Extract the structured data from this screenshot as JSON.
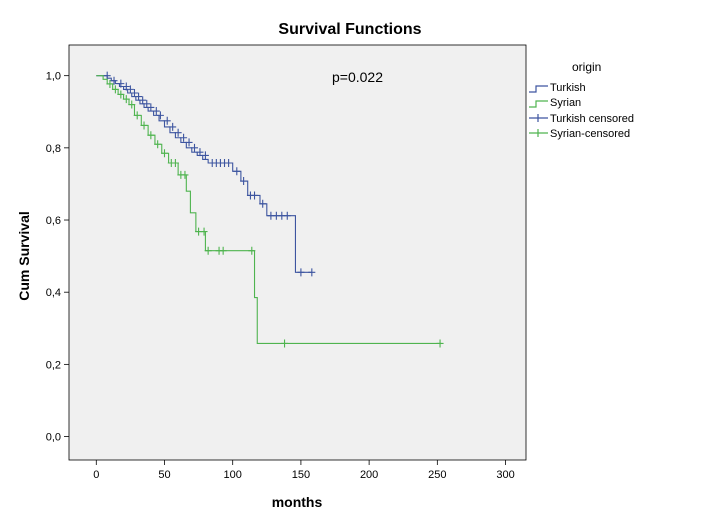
{
  "chart_data": {
    "type": "line",
    "title": "Survival Functions",
    "xlabel": "months",
    "ylabel": "Cum Survival",
    "xlim": [
      -20,
      315
    ],
    "ylim": [
      -0.065,
      1.085
    ],
    "x_ticks": [
      0,
      50,
      100,
      150,
      200,
      250,
      300
    ],
    "x_tick_labels": [
      "0",
      "50",
      "100",
      "150",
      "200",
      "250",
      "300"
    ],
    "y_ticks": [
      0.0,
      0.2,
      0.4,
      0.6,
      0.8,
      1.0
    ],
    "y_tick_labels": [
      "0,0",
      "0,2",
      "0,4",
      "0,6",
      "0,8",
      "1,0"
    ],
    "annotation": "p=0.022",
    "plot_background": "#f0f0f0",
    "grid": false,
    "legend_placement": "right-top",
    "legend": {
      "title": "origin",
      "entries": [
        "Turkish",
        "Syrian",
        "Turkish censored",
        "Syrian-censored"
      ]
    },
    "series": [
      {
        "name": "Turkish",
        "color": "#3d55a0",
        "steps": [
          [
            0,
            1.0
          ],
          [
            8,
            1.0
          ],
          [
            8,
            0.993
          ],
          [
            11,
            0.993
          ],
          [
            11,
            0.986
          ],
          [
            14,
            0.986
          ],
          [
            14,
            0.978
          ],
          [
            17,
            0.978
          ],
          [
            17,
            0.97
          ],
          [
            20,
            0.97
          ],
          [
            20,
            0.962
          ],
          [
            23,
            0.962
          ],
          [
            23,
            0.952
          ],
          [
            26,
            0.952
          ],
          [
            26,
            0.942
          ],
          [
            29,
            0.942
          ],
          [
            29,
            0.932
          ],
          [
            32,
            0.932
          ],
          [
            32,
            0.922
          ],
          [
            35,
            0.922
          ],
          [
            35,
            0.912
          ],
          [
            38,
            0.912
          ],
          [
            38,
            0.902
          ],
          [
            42,
            0.902
          ],
          [
            42,
            0.89
          ],
          [
            46,
            0.89
          ],
          [
            46,
            0.875
          ],
          [
            50,
            0.875
          ],
          [
            50,
            0.858
          ],
          [
            54,
            0.858
          ],
          [
            54,
            0.842
          ],
          [
            58,
            0.842
          ],
          [
            58,
            0.828
          ],
          [
            62,
            0.828
          ],
          [
            62,
            0.815
          ],
          [
            66,
            0.815
          ],
          [
            66,
            0.8
          ],
          [
            70,
            0.8
          ],
          [
            70,
            0.788
          ],
          [
            74,
            0.788
          ],
          [
            74,
            0.779
          ],
          [
            78,
            0.779
          ],
          [
            78,
            0.768
          ],
          [
            82,
            0.768
          ],
          [
            82,
            0.758
          ],
          [
            100,
            0.758
          ],
          [
            100,
            0.735
          ],
          [
            106,
            0.735
          ],
          [
            106,
            0.708
          ],
          [
            111,
            0.708
          ],
          [
            111,
            0.668
          ],
          [
            120,
            0.668
          ],
          [
            120,
            0.645
          ],
          [
            125,
            0.645
          ],
          [
            125,
            0.612
          ],
          [
            146,
            0.612
          ],
          [
            146,
            0.455
          ],
          [
            158,
            0.455
          ]
        ],
        "censored": [
          [
            8,
            1.0
          ],
          [
            13,
            0.986
          ],
          [
            18,
            0.978
          ],
          [
            22,
            0.97
          ],
          [
            25,
            0.962
          ],
          [
            28,
            0.952
          ],
          [
            31,
            0.942
          ],
          [
            34,
            0.932
          ],
          [
            37,
            0.922
          ],
          [
            40,
            0.912
          ],
          [
            44,
            0.902
          ],
          [
            47,
            0.89
          ],
          [
            52,
            0.875
          ],
          [
            56,
            0.858
          ],
          [
            60,
            0.842
          ],
          [
            64,
            0.828
          ],
          [
            68,
            0.815
          ],
          [
            72,
            0.8
          ],
          [
            76,
            0.788
          ],
          [
            80,
            0.779
          ],
          [
            85,
            0.758
          ],
          [
            88,
            0.758
          ],
          [
            91,
            0.758
          ],
          [
            94,
            0.758
          ],
          [
            97,
            0.758
          ],
          [
            103,
            0.735
          ],
          [
            108,
            0.708
          ],
          [
            113,
            0.668
          ],
          [
            116,
            0.668
          ],
          [
            122,
            0.645
          ],
          [
            128,
            0.612
          ],
          [
            132,
            0.612
          ],
          [
            136,
            0.612
          ],
          [
            140,
            0.612
          ],
          [
            150,
            0.455
          ],
          [
            158,
            0.455
          ]
        ]
      },
      {
        "name": "Syrian",
        "color": "#4fb44f",
        "steps": [
          [
            0,
            1.0
          ],
          [
            5,
            1.0
          ],
          [
            5,
            0.99
          ],
          [
            8,
            0.99
          ],
          [
            8,
            0.977
          ],
          [
            12,
            0.977
          ],
          [
            12,
            0.962
          ],
          [
            16,
            0.962
          ],
          [
            16,
            0.948
          ],
          [
            20,
            0.948
          ],
          [
            20,
            0.935
          ],
          [
            24,
            0.935
          ],
          [
            24,
            0.92
          ],
          [
            28,
            0.92
          ],
          [
            28,
            0.89
          ],
          [
            33,
            0.89
          ],
          [
            33,
            0.862
          ],
          [
            38,
            0.862
          ],
          [
            38,
            0.835
          ],
          [
            43,
            0.835
          ],
          [
            43,
            0.81
          ],
          [
            48,
            0.81
          ],
          [
            48,
            0.785
          ],
          [
            53,
            0.785
          ],
          [
            53,
            0.758
          ],
          [
            60,
            0.758
          ],
          [
            60,
            0.725
          ],
          [
            66,
            0.725
          ],
          [
            66,
            0.68
          ],
          [
            69,
            0.68
          ],
          [
            69,
            0.62
          ],
          [
            73,
            0.62
          ],
          [
            73,
            0.568
          ],
          [
            80,
            0.568
          ],
          [
            80,
            0.515
          ],
          [
            116,
            0.515
          ],
          [
            116,
            0.385
          ],
          [
            118,
            0.385
          ],
          [
            118,
            0.258
          ],
          [
            253,
            0.258
          ]
        ],
        "censored": [
          [
            10,
            0.977
          ],
          [
            14,
            0.962
          ],
          [
            18,
            0.948
          ],
          [
            22,
            0.935
          ],
          [
            26,
            0.92
          ],
          [
            30,
            0.89
          ],
          [
            35,
            0.862
          ],
          [
            40,
            0.835
          ],
          [
            45,
            0.81
          ],
          [
            50,
            0.785
          ],
          [
            55,
            0.758
          ],
          [
            58,
            0.758
          ],
          [
            62,
            0.725
          ],
          [
            65,
            0.725
          ],
          [
            75,
            0.568
          ],
          [
            79,
            0.568
          ],
          [
            82,
            0.515
          ],
          [
            90,
            0.515
          ],
          [
            93,
            0.515
          ],
          [
            114,
            0.515
          ],
          [
            138,
            0.258
          ],
          [
            252,
            0.258
          ]
        ]
      }
    ]
  }
}
